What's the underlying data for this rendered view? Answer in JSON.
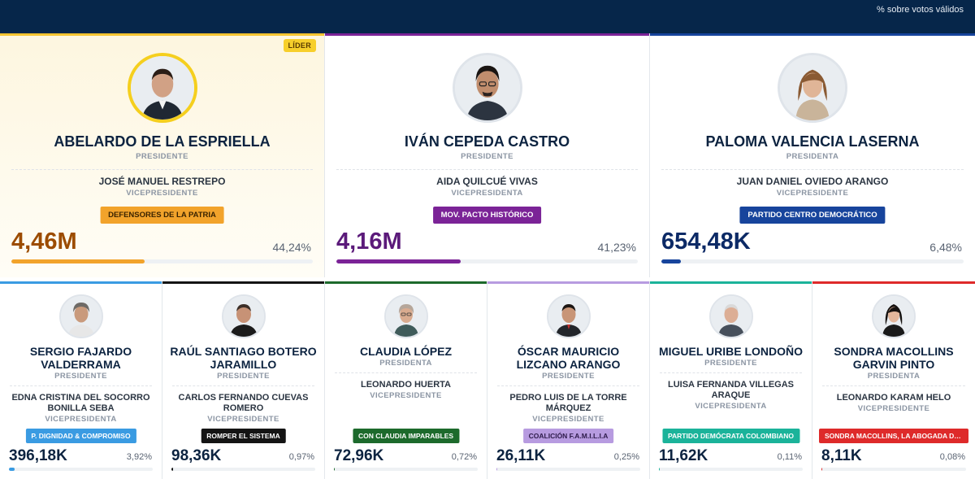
{
  "header": {
    "note": "% sobre votos válidos"
  },
  "leader_label": "LÍDER",
  "top_cards": [
    {
      "name": "ABELARDO DE LA ESPRIELLA",
      "role": "PRESIDENTE",
      "vice_name": "JOSÉ MANUEL RESTREPO",
      "vice_role": "VICEPRESIDENTE",
      "party": "DEFENSORES DE LA PATRIA",
      "party_color": "#f2a32b",
      "party_text_color": "#3a2300",
      "votes": "4,46M",
      "votes_color": "#9c4c00",
      "percent": "44,24%",
      "percent_value": 44.24,
      "bar_color": "#f2a32b",
      "accent_color": "#f5c431"
    },
    {
      "name": "IVÁN CEPEDA CASTRO",
      "role": "PRESIDENTE",
      "vice_name": "AIDA QUILCUÉ VIVAS",
      "vice_role": "VICEPRESIDENTA",
      "party": "MOV. PACTO HISTÓRICO",
      "party_color": "#7b2397",
      "party_text_color": "#ffffff",
      "votes": "4,16M",
      "votes_color": "#5b1a7a",
      "percent": "41,23%",
      "percent_value": 41.23,
      "bar_color": "#7b2397",
      "accent_color": "#7b2397"
    },
    {
      "name": "PALOMA VALENCIA LASERNA",
      "role": "PRESIDENTA",
      "vice_name": "JUAN DANIEL OVIEDO ARANGO",
      "vice_role": "VICEPRESIDENTE",
      "party": "PARTIDO CENTRO DEMOCRÁTICO",
      "party_color": "#17449c",
      "party_text_color": "#ffffff",
      "votes": "654,48K",
      "votes_color": "#0c2a66",
      "percent": "6,48%",
      "percent_value": 6.48,
      "bar_color": "#17449c",
      "accent_color": "#17449c"
    }
  ],
  "bottom_cards": [
    {
      "name": "SERGIO FAJARDO VALDERRAMA",
      "role": "PRESIDENTE",
      "vice_name": "EDNA CRISTINA DEL SOCORRO BONILLA SEBA",
      "vice_role": "VICEPRESIDENTA",
      "party": "P. DIGNIDAD & COMPROMISO",
      "party_color": "#3a9be2",
      "votes": "396,18K",
      "percent": "3,92%",
      "percent_value": 3.92,
      "bar_color": "#3a9be2",
      "accent_color": "#3a9be2"
    },
    {
      "name": "RAÚL SANTIAGO BOTERO JARAMILLO",
      "role": "PRESIDENTE",
      "vice_name": "CARLOS FERNANDO CUEVAS ROMERO",
      "vice_role": "VICEPRESIDENTE",
      "party": "ROMPER EL SISTEMA",
      "party_color": "#141414",
      "votes": "98,36K",
      "percent": "0,97%",
      "percent_value": 0.97,
      "bar_color": "#141414",
      "accent_color": "#141414"
    },
    {
      "name": "CLAUDIA LÓPEZ",
      "role": "PRESIDENTA",
      "vice_name": "LEONARDO HUERTA",
      "vice_role": "VICEPRESIDENTE",
      "party": "CON CLAUDIA IMPARABLES",
      "party_color": "#1d6a2c",
      "votes": "72,96K",
      "percent": "0,72%",
      "percent_value": 0.72,
      "bar_color": "#1d6a2c",
      "accent_color": "#1d6a2c"
    },
    {
      "name": "ÓSCAR MAURICIO LIZCANO ARANGO",
      "role": "PRESIDENTE",
      "vice_name": "PEDRO LUIS DE LA TORRE MÁRQUEZ",
      "vice_role": "VICEPRESIDENTE",
      "party": "COALICIÓN F.A.M.I.L.I.A",
      "party_color": "#b79be0",
      "party_text_color": "#2d1b4a",
      "votes": "26,11K",
      "percent": "0,25%",
      "percent_value": 0.25,
      "bar_color": "#b79be0",
      "accent_color": "#b79be0"
    },
    {
      "name": "MIGUEL URIBE LONDOÑO",
      "role": "PRESIDENTE",
      "vice_name": "LUISA FERNANDA VILLEGAS ARAQUE",
      "vice_role": "VICEPRESIDENTA",
      "party": "PARTIDO DEMÓCRATA COLOMBIANO",
      "party_color": "#1bb39a",
      "votes": "11,62K",
      "percent": "0,11%",
      "percent_value": 0.11,
      "bar_color": "#1bb39a",
      "accent_color": "#1bb39a"
    },
    {
      "name": "SONDRA MACOLLINS GARVIN PINTO",
      "role": "PRESIDENTA",
      "vice_name": "LEONARDO KARAM HELO",
      "vice_role": "VICEPRESIDENTE",
      "party": "SONDRA MACOLLINS, LA ABOGADA DE ...",
      "party_color": "#de2a2a",
      "votes": "8,11K",
      "percent": "0,08%",
      "percent_value": 0.08,
      "bar_color": "#de2a2a",
      "accent_color": "#de2a2a"
    }
  ]
}
